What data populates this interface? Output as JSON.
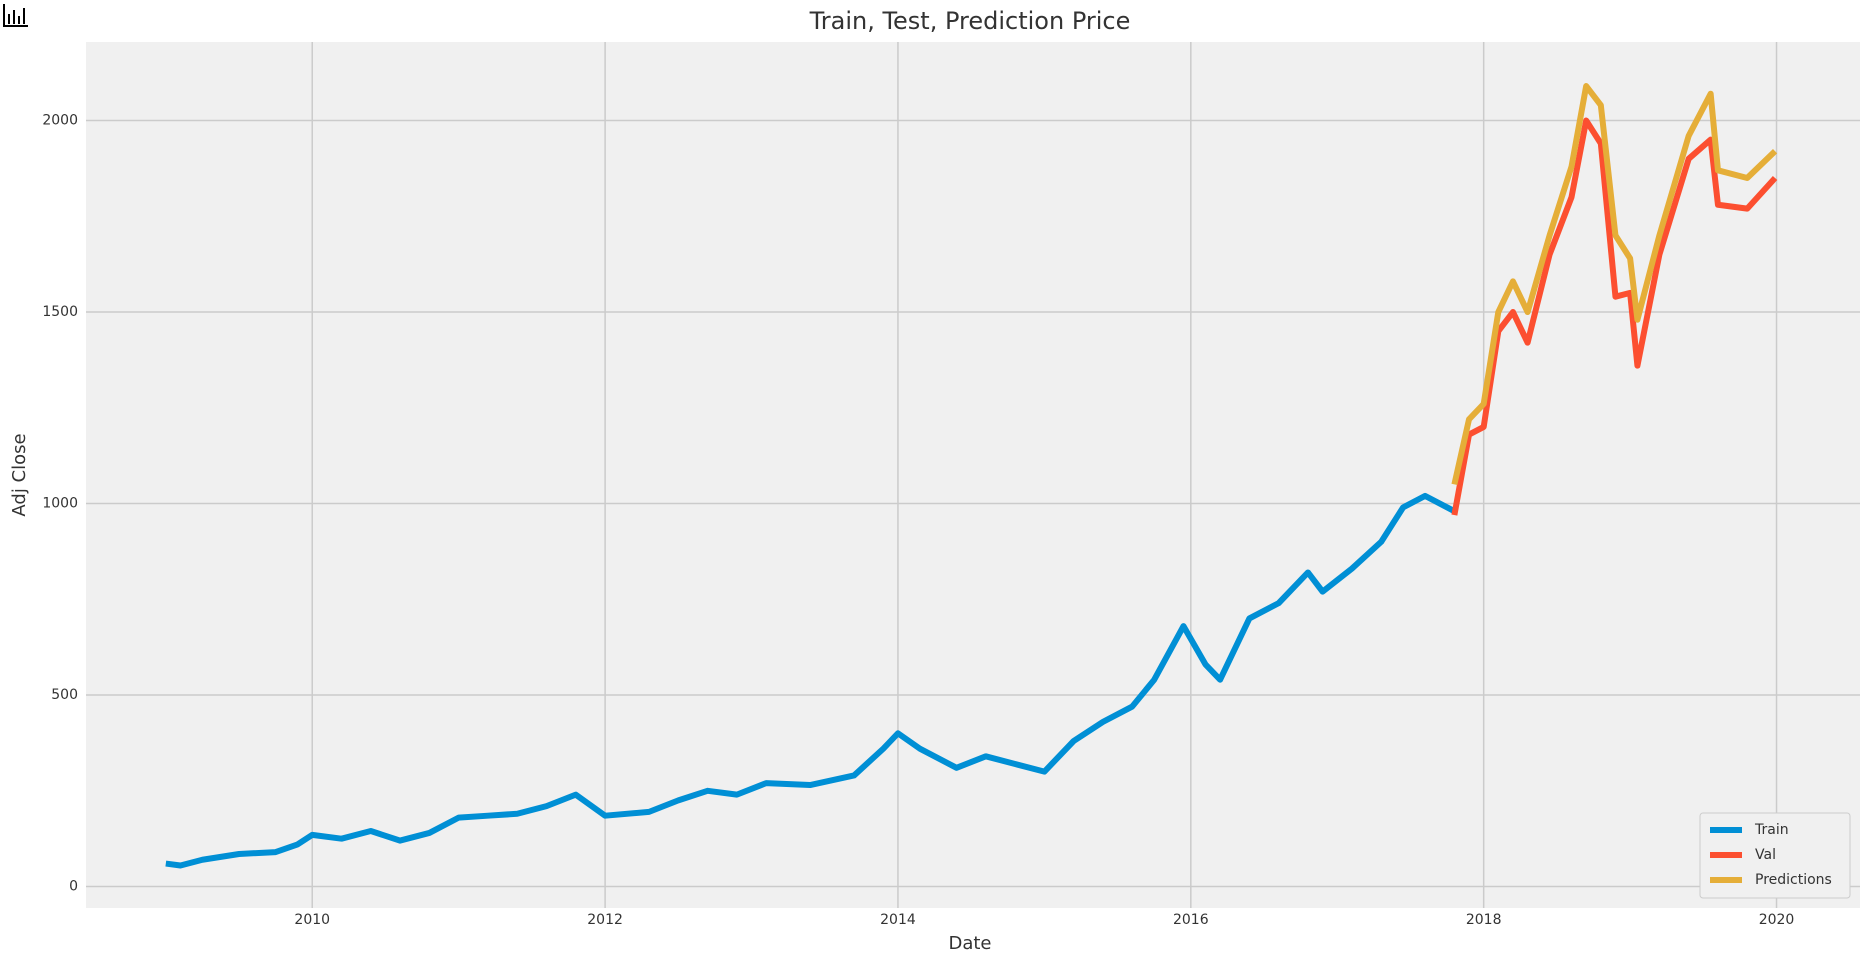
{
  "chart_data": {
    "type": "line",
    "title": "Train, Test, Prediction Price",
    "x_label": "Date",
    "y_label": "Adj Close",
    "xlim": [
      2008.455,
      2020.57
    ],
    "xticks": [
      2010,
      2012,
      2014,
      2016,
      2018,
      2020
    ],
    "ylim": [
      -56,
      2205
    ],
    "yticks": [
      0,
      500,
      1000,
      1500,
      2000
    ],
    "grid": true,
    "legend": "lower right",
    "series": [
      {
        "name": "Train",
        "color": "#008fd5",
        "x": [
          2009.0,
          2009.1,
          2009.25,
          2009.5,
          2009.75,
          2009.9,
          2010.0,
          2010.2,
          2010.4,
          2010.6,
          2010.8,
          2011.0,
          2011.2,
          2011.4,
          2011.6,
          2011.8,
          2012.0,
          2012.3,
          2012.5,
          2012.7,
          2012.9,
          2013.1,
          2013.4,
          2013.7,
          2013.9,
          2014.0,
          2014.15,
          2014.4,
          2014.6,
          2014.8,
          2015.0,
          2015.2,
          2015.4,
          2015.6,
          2015.75,
          2015.95,
          2016.1,
          2016.2,
          2016.4,
          2016.6,
          2016.8,
          2016.9,
          2017.1,
          2017.3,
          2017.45,
          2017.6,
          2017.8
        ],
        "values": [
          60,
          55,
          70,
          85,
          90,
          110,
          135,
          125,
          145,
          120,
          140,
          180,
          185,
          190,
          210,
          240,
          185,
          195,
          225,
          250,
          240,
          270,
          265,
          290,
          360,
          400,
          360,
          310,
          340,
          320,
          300,
          380,
          430,
          470,
          540,
          680,
          580,
          540,
          700,
          740,
          820,
          770,
          830,
          900,
          990,
          1020,
          980
        ]
      },
      {
        "name": "Val",
        "color": "#fc4f30",
        "x": [
          2017.8,
          2017.9,
          2018.0,
          2018.1,
          2018.2,
          2018.3,
          2018.45,
          2018.6,
          2018.7,
          2018.8,
          2018.9,
          2019.0,
          2019.05,
          2019.2,
          2019.4,
          2019.55,
          2019.6,
          2019.8,
          2019.99
        ],
        "values": [
          970,
          1180,
          1200,
          1450,
          1500,
          1420,
          1650,
          1800,
          2000,
          1940,
          1540,
          1550,
          1360,
          1650,
          1900,
          1950,
          1780,
          1770,
          1850
        ]
      },
      {
        "name": "Predictions",
        "color": "#e5ae38",
        "x": [
          2017.8,
          2017.9,
          2018.0,
          2018.1,
          2018.2,
          2018.3,
          2018.45,
          2018.6,
          2018.7,
          2018.8,
          2018.9,
          2019.0,
          2019.05,
          2019.2,
          2019.4,
          2019.55,
          2019.6,
          2019.8,
          2019.99
        ],
        "values": [
          1050,
          1220,
          1260,
          1500,
          1580,
          1500,
          1700,
          1880,
          2090,
          2040,
          1700,
          1640,
          1480,
          1700,
          1960,
          2070,
          1870,
          1850,
          1920
        ]
      }
    ]
  }
}
